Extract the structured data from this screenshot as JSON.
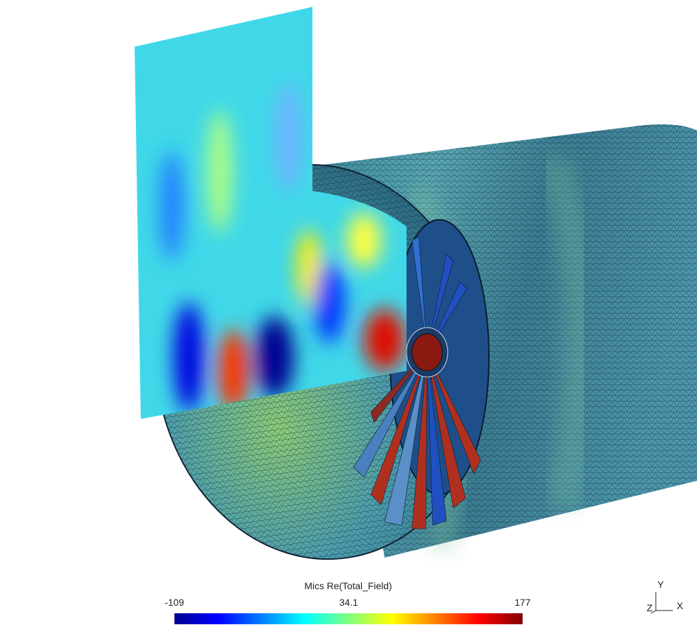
{
  "colorbar": {
    "title": "Mics Re(Total_Field)",
    "range": [
      -109,
      177
    ],
    "ticks": [
      -109,
      34.1,
      177
    ]
  },
  "axes": {
    "y": "Y",
    "z": "Z",
    "x": "X"
  }
}
